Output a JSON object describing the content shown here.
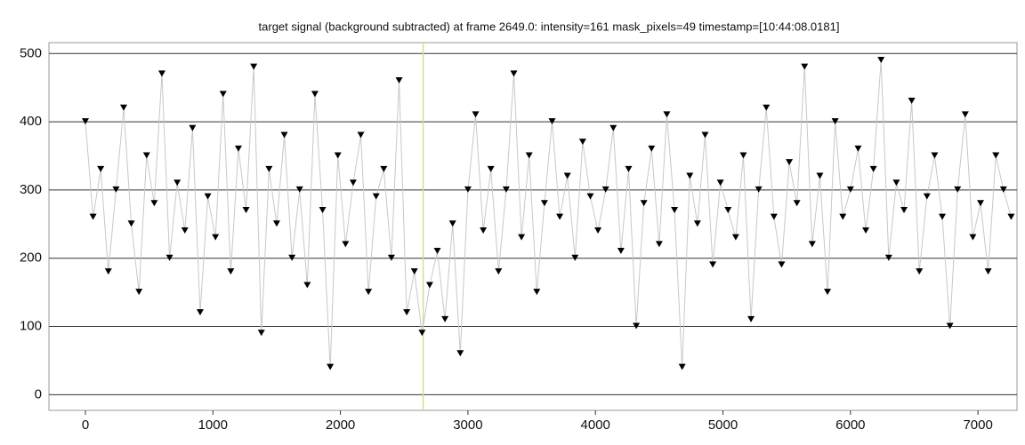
{
  "chart_data": {
    "type": "scatter-line",
    "title": "target signal (background subtracted) at frame 2649.0: intensity=161 mask_pixels=49 timestamp=[10:44:08.0181]",
    "marker_x": 2649,
    "color": "#000000",
    "line_color": "#c8c8c8",
    "marker_line_color": "#d9dc8a",
    "x": [
      0,
      60,
      120,
      180,
      240,
      300,
      360,
      420,
      480,
      540,
      600,
      660,
      720,
      780,
      840,
      900,
      960,
      1020,
      1080,
      1140,
      1200,
      1260,
      1320,
      1380,
      1440,
      1500,
      1560,
      1620,
      1680,
      1740,
      1800,
      1860,
      1920,
      1980,
      2040,
      2100,
      2160,
      2220,
      2280,
      2340,
      2400,
      2460,
      2520,
      2580,
      2640,
      2700,
      2760,
      2820,
      2880,
      2940,
      3000,
      3060,
      3120,
      3180,
      3240,
      3300,
      3360,
      3420,
      3480,
      3540,
      3600,
      3660,
      3720,
      3780,
      3840,
      3900,
      3960,
      4020,
      4080,
      4140,
      4200,
      4260,
      4320,
      4380,
      4440,
      4500,
      4560,
      4620,
      4680,
      4740,
      4800,
      4860,
      4920,
      4980,
      5040,
      5100,
      5160,
      5220,
      5280,
      5340,
      5400,
      5460,
      5520,
      5580,
      5640,
      5700,
      5760,
      5820,
      5880,
      5940,
      6000,
      6060,
      6120,
      6180,
      6240,
      6300,
      6360,
      6420,
      6480,
      6540,
      6600,
      6660,
      6720,
      6780,
      6840,
      6900,
      6960,
      7020,
      7080,
      7140,
      7200,
      7260
    ],
    "values": [
      400,
      260,
      330,
      180,
      300,
      420,
      250,
      150,
      350,
      280,
      470,
      200,
      310,
      240,
      390,
      120,
      290,
      230,
      440,
      180,
      360,
      270,
      480,
      90,
      330,
      250,
      380,
      200,
      300,
      160,
      440,
      270,
      40,
      350,
      220,
      310,
      380,
      150,
      290,
      330,
      200,
      460,
      120,
      180,
      90,
      160,
      210,
      110,
      250,
      60,
      300,
      410,
      240,
      330,
      180,
      300,
      470,
      230,
      350,
      150,
      280,
      400,
      260,
      320,
      200,
      370,
      290,
      240,
      300,
      390,
      210,
      330,
      100,
      280,
      360,
      220,
      410,
      270,
      40,
      320,
      250,
      380,
      190,
      310,
      270,
      230,
      350,
      110,
      300,
      420,
      260,
      190,
      340,
      280,
      480,
      220,
      320,
      150,
      400,
      260,
      300,
      360,
      240,
      330,
      490,
      200,
      310,
      270,
      430,
      180,
      290,
      350,
      260,
      100,
      300,
      410,
      230,
      280,
      180,
      350,
      300,
      260
    ],
    "xlim": [
      -286,
      7306
    ],
    "ylim": [
      -23,
      516
    ],
    "xticks": [
      0,
      1000,
      2000,
      3000,
      4000,
      5000,
      6000,
      7000
    ],
    "yticks": [
      0,
      100,
      200,
      300,
      400,
      500
    ],
    "grid": true
  }
}
